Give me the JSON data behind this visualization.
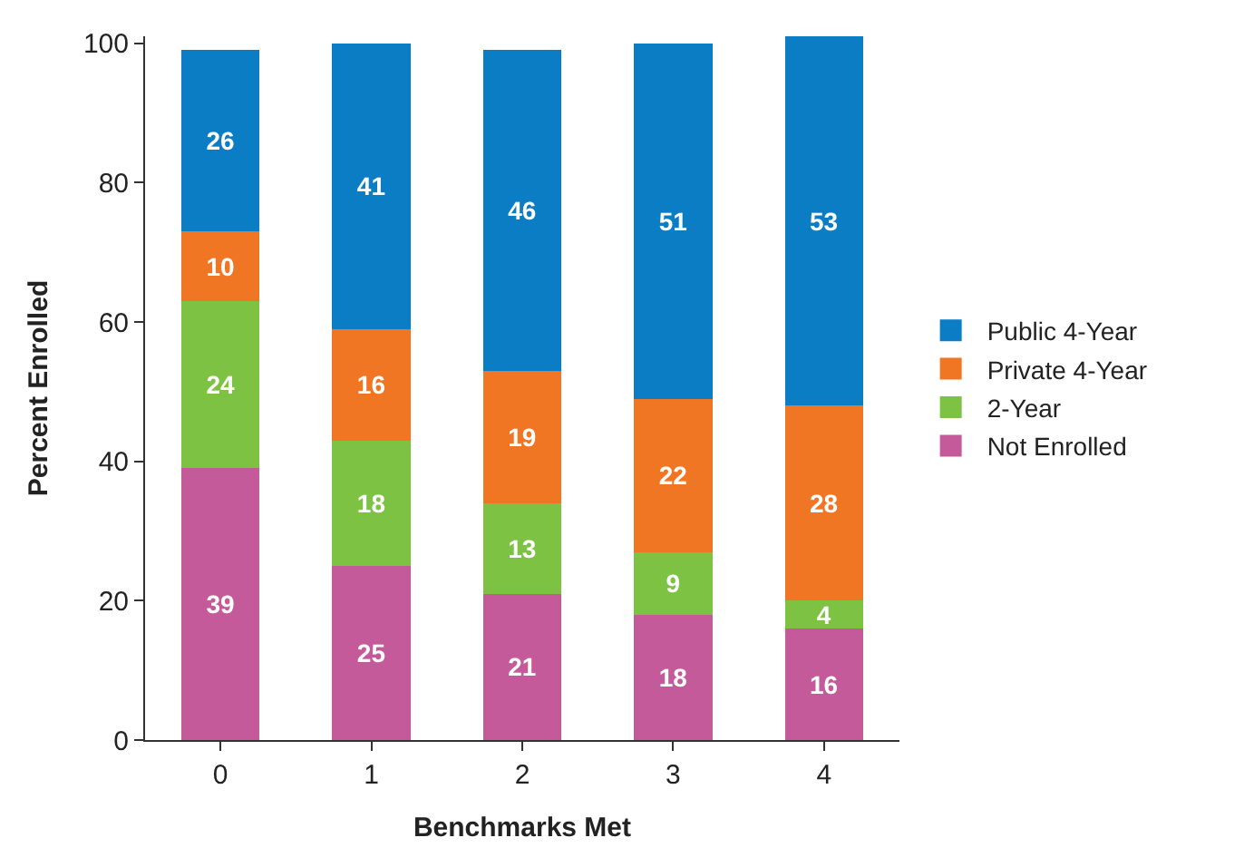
{
  "chart_data": {
    "type": "bar",
    "stacked": true,
    "xlabel": "Benchmarks Met",
    "ylabel": "Percent Enrolled",
    "categories": [
      "0",
      "1",
      "2",
      "3",
      "4"
    ],
    "series": [
      {
        "name": "Not Enrolled",
        "color": "#c55a9a",
        "values": [
          39,
          25,
          21,
          18,
          16
        ]
      },
      {
        "name": "2-Year",
        "color": "#7dc243",
        "values": [
          24,
          18,
          13,
          9,
          4
        ]
      },
      {
        "name": "Private 4-Year",
        "color": "#f07623",
        "values": [
          10,
          16,
          19,
          22,
          28
        ]
      },
      {
        "name": "Public 4-Year",
        "color": "#0a7dc4",
        "values": [
          26,
          41,
          46,
          51,
          53
        ]
      }
    ],
    "ylim": [
      0,
      101
    ],
    "yticks": [
      0,
      20,
      40,
      60,
      80,
      100
    ],
    "grid": false,
    "legend": "right",
    "data_labels": true
  }
}
